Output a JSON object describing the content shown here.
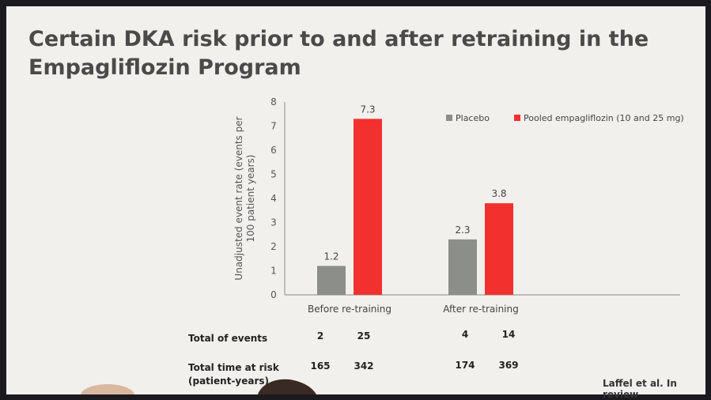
{
  "slide": {
    "title_line1": "Certain DKA risk prior to and after retraining in the",
    "title_line2": "Empagliflozin Program",
    "citation": "Laffel et al. In review"
  },
  "chart_data": {
    "type": "bar",
    "categories": [
      "Before re-training",
      "After re-training"
    ],
    "series": [
      {
        "name": "Placebo",
        "values": [
          1.2,
          2.3
        ],
        "color": "#8c8e89"
      },
      {
        "name": "Pooled empagliflozin (10 and 25 mg)",
        "values": [
          7.3,
          3.8
        ],
        "color": "#f2312e"
      }
    ],
    "value_labels": [
      [
        "1.2",
        "2.3"
      ],
      [
        "7.3",
        "3.8"
      ]
    ],
    "ylabel_line1": "Unadjusted event rate (events per",
    "ylabel_line2": "100 patient years)",
    "ylim": [
      0,
      8
    ],
    "yticks": [
      "0",
      "1",
      "2",
      "3",
      "4",
      "5",
      "6",
      "7",
      "8"
    ],
    "grid": false,
    "legend_position": "top-right"
  },
  "table": {
    "rows": [
      {
        "label": "Total  of events",
        "values": [
          "2",
          "25",
          "4",
          "14"
        ]
      },
      {
        "label_line1": "Total time at risk",
        "label_line2": "(patient-years)",
        "values": [
          "165",
          "342",
          "174",
          "369"
        ]
      }
    ]
  }
}
